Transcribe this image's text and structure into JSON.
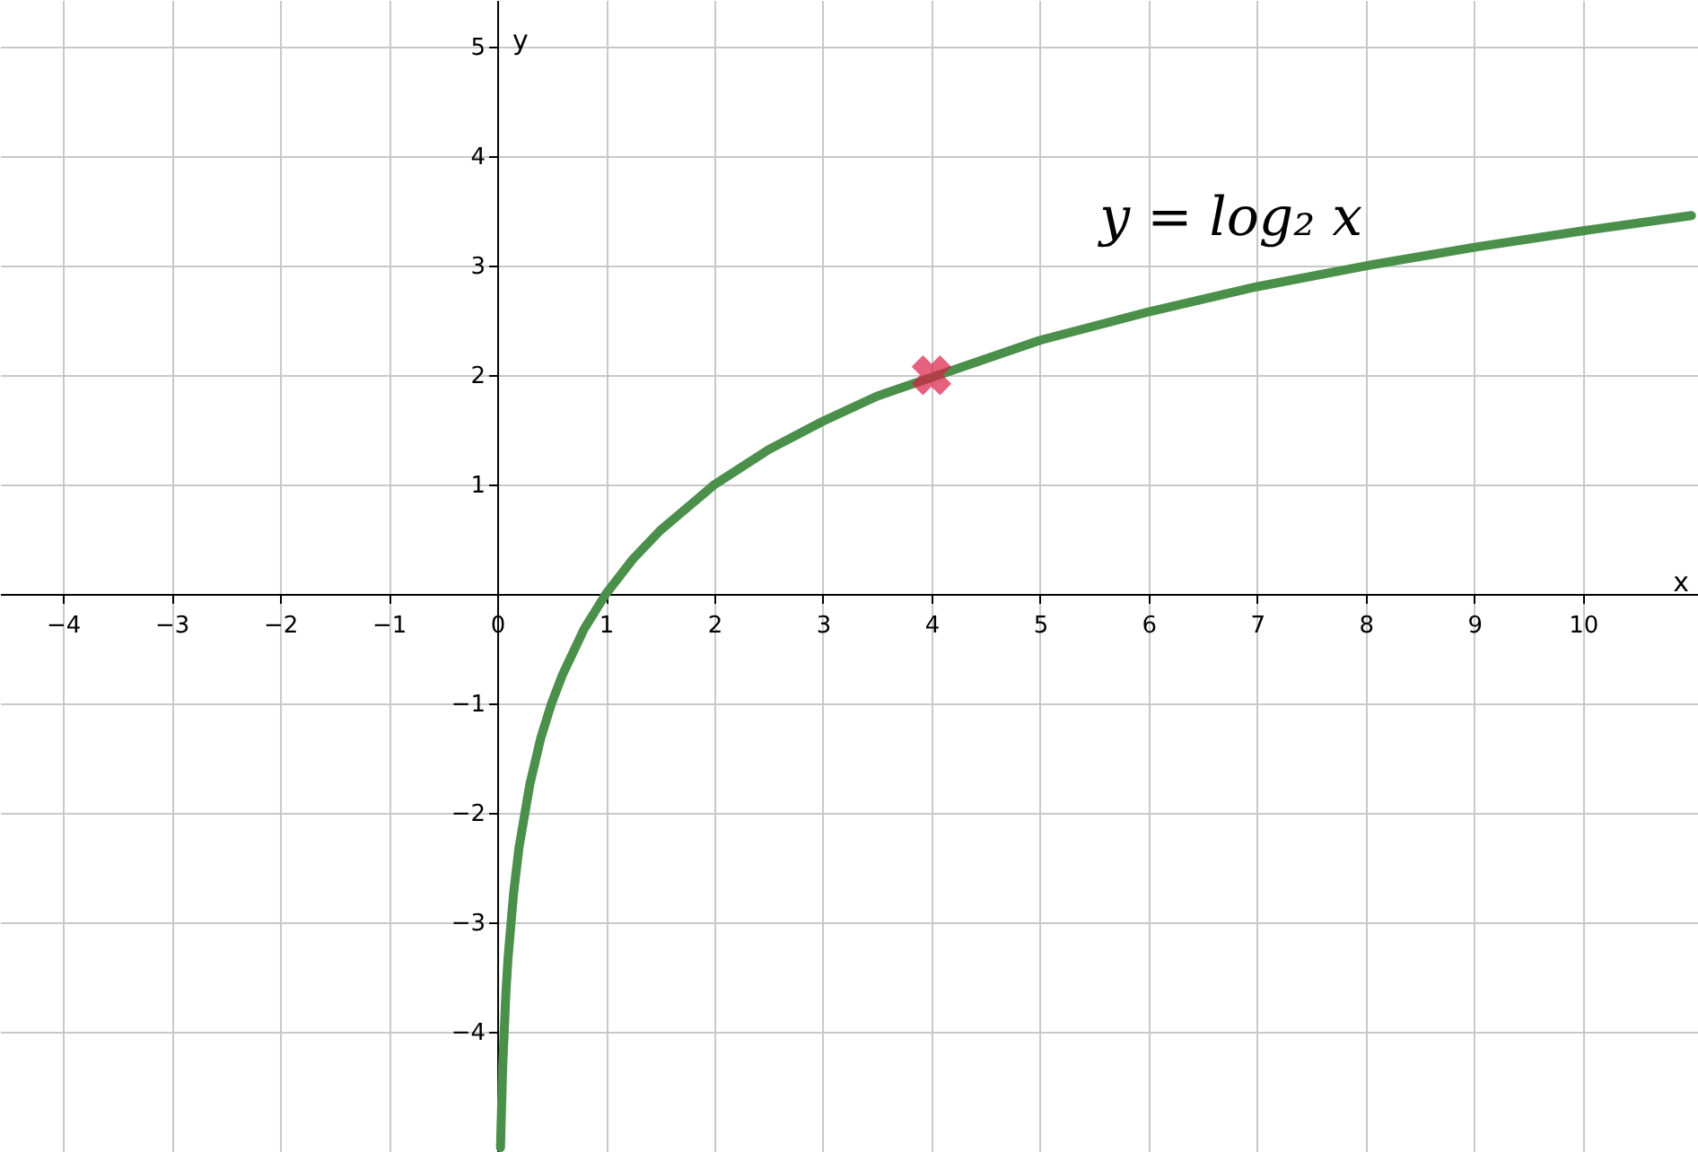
{
  "chart_data": {
    "type": "line",
    "xlabel": "x",
    "ylabel": "y",
    "xlim": [
      -4.58,
      11.06
    ],
    "ylim": [
      -5.1,
      5.43
    ],
    "xticks": [
      -4,
      -3,
      -2,
      -1,
      0,
      1,
      2,
      3,
      4,
      5,
      6,
      7,
      8,
      9,
      10
    ],
    "yticks": [
      -4,
      -3,
      -2,
      -1,
      1,
      2,
      3,
      4,
      5
    ],
    "grid": true,
    "series": [
      {
        "color": "#4a8f4a",
        "x": [
          0.03,
          0.05,
          0.08,
          0.1,
          0.15,
          0.2,
          0.3,
          0.4,
          0.5,
          0.6,
          0.8,
          1,
          1.25,
          1.5,
          2,
          2.5,
          3,
          3.5,
          5,
          6,
          7,
          8,
          9,
          10,
          11
        ],
        "values": [
          -5.06,
          -4.32,
          -3.64,
          -3.32,
          -2.74,
          -2.32,
          -1.74,
          -1.32,
          -1,
          -0.74,
          -0.32,
          0,
          0.32,
          0.58,
          1,
          1.32,
          1.58,
          1.81,
          2.32,
          2.58,
          2.81,
          3,
          3.17,
          3.32,
          3.46
        ]
      },
      {
        "type": "scatter",
        "marker": "cross",
        "color": "#dc1e46",
        "x": [
          4
        ],
        "values": [
          2
        ]
      }
    ],
    "annotations": [
      "y = log₂ x"
    ]
  }
}
